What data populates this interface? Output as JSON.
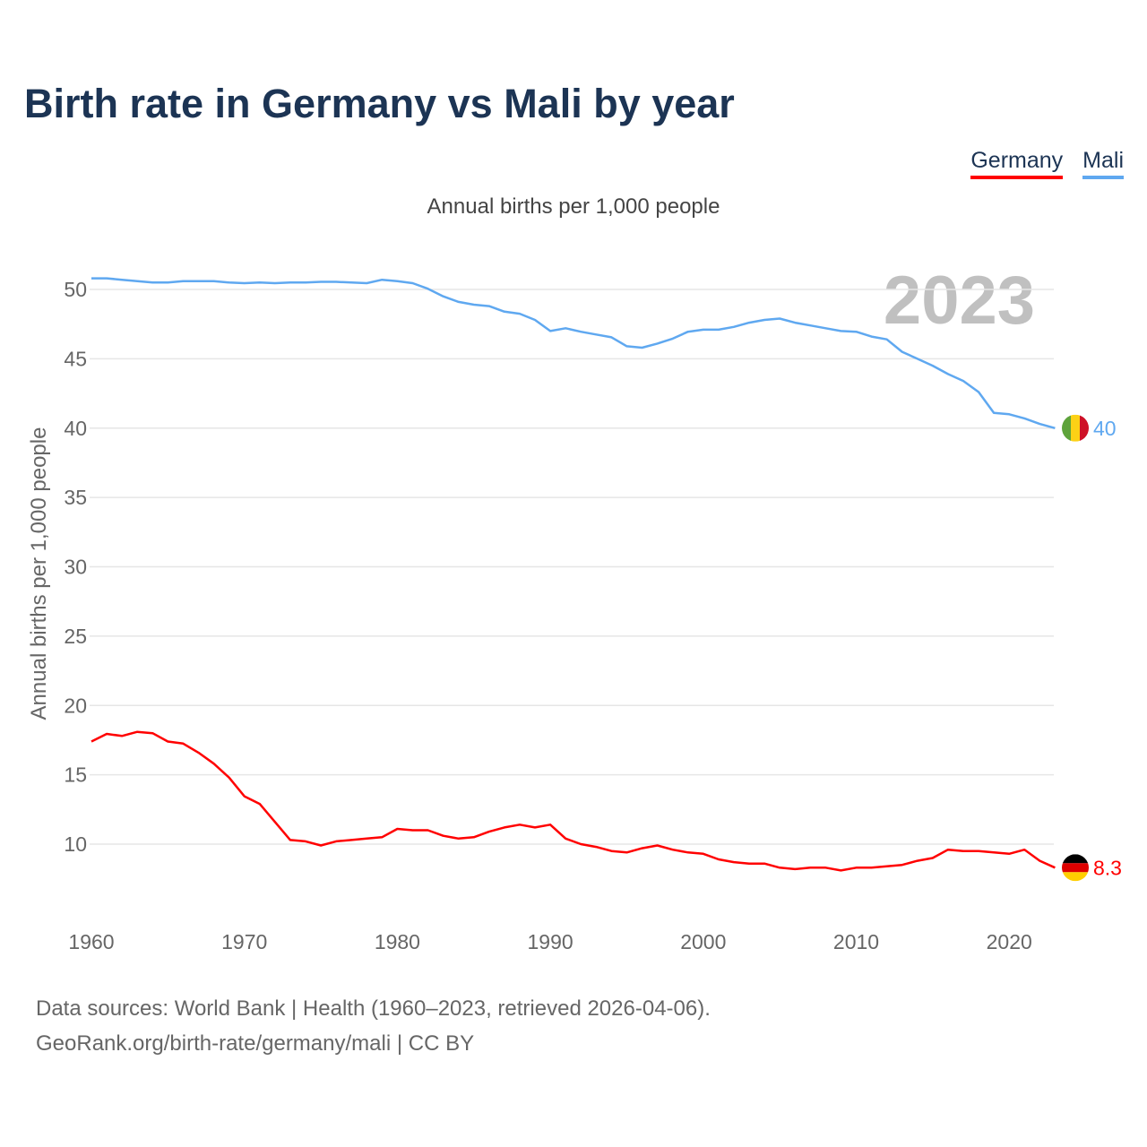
{
  "title": "Birth rate in Germany vs Mali by year",
  "subtitle": "Annual births per 1,000 people",
  "year_watermark": "2023",
  "footer": {
    "line1": "Data sources: World Bank | Health (1960–2023, retrieved 2026-04-06).",
    "line2": "GeoRank.org/birth-rate/germany/mali | CC BY"
  },
  "chart_data": {
    "type": "line",
    "title": "Birth rate in Germany vs Mali by year",
    "xlabel": "",
    "ylabel": "Annual births per 1,000 people",
    "xlim": [
      1960,
      2023
    ],
    "ylim": [
      7,
      52
    ],
    "yticks": [
      10,
      15,
      20,
      25,
      30,
      35,
      40,
      45,
      50
    ],
    "xticks": [
      1960,
      1970,
      1980,
      1990,
      2000,
      2010,
      2020
    ],
    "grid": true,
    "legend_position": "top-right",
    "x_start": 1960,
    "series": [
      {
        "name": "Germany",
        "color": "#ff0000",
        "end_label": "8.3",
        "values": [
          17.4,
          17.95,
          17.8,
          18.1,
          18.0,
          17.4,
          17.25,
          16.6,
          15.8,
          14.8,
          13.45,
          12.9,
          11.6,
          10.3,
          10.2,
          9.9,
          10.2,
          10.3,
          10.4,
          10.5,
          11.1,
          11.0,
          11.0,
          10.6,
          10.4,
          10.5,
          10.9,
          11.2,
          11.4,
          11.2,
          11.4,
          10.4,
          10.0,
          9.8,
          9.5,
          9.4,
          9.7,
          9.9,
          9.6,
          9.4,
          9.3,
          8.9,
          8.7,
          8.6,
          8.6,
          8.3,
          8.2,
          8.3,
          8.3,
          8.1,
          8.3,
          8.3,
          8.4,
          8.5,
          8.8,
          9.0,
          9.6,
          9.5,
          9.5,
          9.4,
          9.3,
          9.6,
          8.8,
          8.3
        ]
      },
      {
        "name": "Mali",
        "color": "#5fa8f0",
        "end_label": "40",
        "values": [
          50.8,
          50.8,
          50.7,
          50.6,
          50.5,
          50.5,
          50.6,
          50.6,
          50.6,
          50.5,
          50.45,
          50.5,
          50.45,
          50.5,
          50.5,
          50.55,
          50.55,
          50.5,
          50.45,
          50.7,
          50.6,
          50.45,
          50.05,
          49.5,
          49.1,
          48.9,
          48.8,
          48.4,
          48.25,
          47.8,
          47.0,
          47.2,
          46.95,
          46.75,
          46.55,
          45.9,
          45.8,
          46.1,
          46.45,
          46.95,
          47.1,
          47.1,
          47.3,
          47.6,
          47.8,
          47.9,
          47.6,
          47.4,
          47.2,
          47.0,
          46.95,
          46.6,
          46.4,
          45.5,
          45.0,
          44.5,
          43.9,
          43.4,
          42.6,
          41.1,
          41.0,
          40.7,
          40.3,
          40.0
        ]
      }
    ]
  }
}
